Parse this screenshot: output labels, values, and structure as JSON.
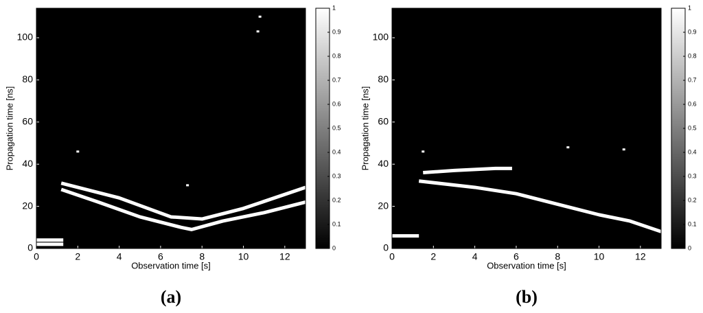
{
  "chart_data": [
    {
      "type": "line",
      "label": "(a)",
      "xlabel": "Observation time [s]",
      "ylabel": "Propagation time [ns]",
      "xlim": [
        0,
        13
      ],
      "ylim": [
        0,
        114
      ],
      "xticks": [
        0,
        2,
        4,
        6,
        8,
        10,
        12
      ],
      "yticks": [
        0,
        20,
        40,
        60,
        80,
        100
      ],
      "background": "#000000",
      "colorbar": {
        "clim": [
          0,
          1
        ],
        "ticks": [
          0,
          0.1,
          0.2,
          0.3,
          0.4,
          0.5,
          0.6,
          0.7,
          0.8,
          0.9,
          1
        ]
      },
      "series": [
        {
          "color": "#ffffff",
          "x": [
            1.2,
            3,
            5,
            7,
            7.5,
            9,
            11,
            13
          ],
          "values": [
            28,
            22,
            15,
            10,
            9,
            13,
            17,
            22
          ]
        },
        {
          "color": "#ffffff",
          "x": [
            1.2,
            4,
            6.5,
            8,
            10,
            13
          ],
          "values": [
            31,
            24,
            15,
            14,
            19,
            29
          ]
        },
        {
          "color": "#ffffff",
          "x": [
            0,
            1.3
          ],
          "values": [
            2,
            2
          ]
        },
        {
          "color": "#ffffff",
          "x": [
            0,
            1.3
          ],
          "values": [
            4,
            4
          ]
        },
        {
          "color": "#ffffff",
          "x": [
            2
          ],
          "values": [
            46
          ]
        },
        {
          "color": "#ffffff",
          "x": [
            10.7
          ],
          "values": [
            103
          ]
        },
        {
          "color": "#ffffff",
          "x": [
            10.8
          ],
          "values": [
            110
          ]
        },
        {
          "color": "#ffffff",
          "x": [
            7.3
          ],
          "values": [
            30
          ]
        }
      ]
    },
    {
      "type": "line",
      "label": "(b)",
      "xlabel": "Observation time [s]",
      "ylabel": "Propagation time [ns]",
      "xlim": [
        0,
        13
      ],
      "ylim": [
        0,
        114
      ],
      "xticks": [
        0,
        2,
        4,
        6,
        8,
        10,
        12
      ],
      "yticks": [
        0,
        20,
        40,
        60,
        80,
        100
      ],
      "background": "#000000",
      "colorbar": {
        "clim": [
          0,
          1
        ],
        "ticks": [
          0,
          0.1,
          0.2,
          0.3,
          0.4,
          0.5,
          0.6,
          0.7,
          0.8,
          0.9,
          1
        ]
      },
      "series": [
        {
          "color": "#ffffff",
          "x": [
            1.5,
            3,
            5,
            5.8
          ],
          "values": [
            36,
            37,
            38,
            38
          ]
        },
        {
          "color": "#ffffff",
          "x": [
            1.3,
            4,
            6,
            8,
            10,
            11.5,
            13
          ],
          "values": [
            32,
            29,
            26,
            21,
            16,
            13,
            8
          ]
        },
        {
          "color": "#ffffff",
          "x": [
            0,
            1.3
          ],
          "values": [
            6,
            6
          ]
        },
        {
          "color": "#ffffff",
          "x": [
            1.5
          ],
          "values": [
            46
          ]
        },
        {
          "color": "#ffffff",
          "x": [
            11.2
          ],
          "values": [
            47
          ]
        },
        {
          "color": "#ffffff",
          "x": [
            8.5
          ],
          "values": [
            48
          ]
        }
      ]
    }
  ]
}
